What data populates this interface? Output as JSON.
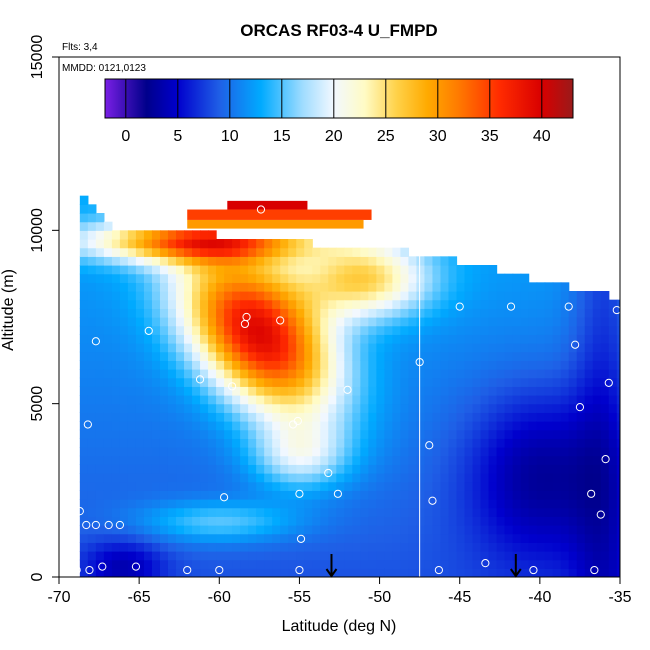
{
  "chart_data": {
    "type": "heatmap",
    "title": "ORCAS RF03-4 U_FMPD",
    "annotations": {
      "flights": "Flts: 3,4",
      "dates": "MMDD: 0121,0123"
    },
    "xlabel": "Latitude (deg N)",
    "ylabel": "Altitude (m)",
    "xlim": [
      -70,
      -35
    ],
    "ylim": [
      0,
      15000
    ],
    "x_ticks": [
      -70,
      -65,
      -60,
      -55,
      -50,
      -45,
      -40,
      -35
    ],
    "y_ticks": [
      0,
      5000,
      10000,
      15000
    ],
    "colorbar": {
      "range": [
        -2,
        43
      ],
      "ticks": [
        0,
        5,
        10,
        15,
        20,
        25,
        30,
        35,
        40
      ],
      "stops": [
        {
          "v": -2,
          "c": "#7a1fe6"
        },
        {
          "v": 0,
          "c": "#3a0fb4"
        },
        {
          "v": 2,
          "c": "#00008b"
        },
        {
          "v": 5,
          "c": "#0000cd"
        },
        {
          "v": 9,
          "c": "#1f5fe6"
        },
        {
          "v": 13,
          "c": "#00aaff"
        },
        {
          "v": 17,
          "c": "#9fdcff"
        },
        {
          "v": 20,
          "c": "#f2f8ff"
        },
        {
          "v": 23,
          "c": "#fffbc4"
        },
        {
          "v": 26,
          "c": "#ffd24a"
        },
        {
          "v": 29,
          "c": "#ffaa00"
        },
        {
          "v": 32,
          "c": "#ff7a00"
        },
        {
          "v": 36,
          "c": "#ff2a00"
        },
        {
          "v": 40,
          "c": "#d80000"
        },
        {
          "v": 43,
          "c": "#9a1a1a"
        }
      ]
    },
    "field_model": {
      "description": "approximate zonal wind (m/s) vs latitude and altitude",
      "base": 8.5,
      "jet_core": {
        "lat": -57.5,
        "alt_m": 7000,
        "peak": 38
      },
      "lat_window": [
        -68.7,
        -35
      ],
      "ceiling_alt_m": [
        {
          "lat": -66.5,
          "alt": 10000
        },
        {
          "lat": -47,
          "alt": 9200
        },
        {
          "lat": -35,
          "alt": 7900
        }
      ]
    },
    "vertical_line_lat": -47.5,
    "markers": [
      {
        "lat": -53.0,
        "alt": 0,
        "label": "arrow"
      },
      {
        "lat": -41.5,
        "alt": 0,
        "label": "arrow"
      }
    ],
    "points": [
      [
        -68.9,
        200
      ],
      [
        -68.7,
        1900
      ],
      [
        -68.3,
        1500
      ],
      [
        -68.1,
        200
      ],
      [
        -67.7,
        1500
      ],
      [
        -67.3,
        300
      ],
      [
        -66.9,
        1500
      ],
      [
        -66.2,
        1500
      ],
      [
        -65.2,
        300
      ],
      [
        -62.0,
        200
      ],
      [
        -60.0,
        200
      ],
      [
        -55.0,
        200
      ],
      [
        -68.2,
        4400
      ],
      [
        -67.7,
        6800
      ],
      [
        -64.4,
        7100
      ],
      [
        -61.2,
        5700
      ],
      [
        -59.2,
        5500
      ],
      [
        -58.4,
        7300
      ],
      [
        -58.3,
        7500
      ],
      [
        -56.2,
        7400
      ],
      [
        -55.4,
        4400
      ],
      [
        -55.1,
        4500
      ],
      [
        -59.7,
        2300
      ],
      [
        -55.0,
        2400
      ],
      [
        -54.9,
        1100
      ],
      [
        -53.2,
        3000
      ],
      [
        -52.6,
        2400
      ],
      [
        -52.0,
        5400
      ],
      [
        -47.5,
        6200
      ],
      [
        -46.9,
        3800
      ],
      [
        -46.7,
        2200
      ],
      [
        -46.3,
        200
      ],
      [
        -45.0,
        7800
      ],
      [
        -43.4,
        400
      ],
      [
        -41.8,
        7800
      ],
      [
        -40.4,
        200
      ],
      [
        -38.2,
        7800
      ],
      [
        -37.8,
        6700
      ],
      [
        -37.5,
        4900
      ],
      [
        -36.8,
        2400
      ],
      [
        -36.2,
        1800
      ],
      [
        -35.9,
        3400
      ],
      [
        -36.6,
        200
      ],
      [
        -35.7,
        5600
      ],
      [
        -35.2,
        7700
      ],
      [
        -57.4,
        10600
      ]
    ]
  }
}
